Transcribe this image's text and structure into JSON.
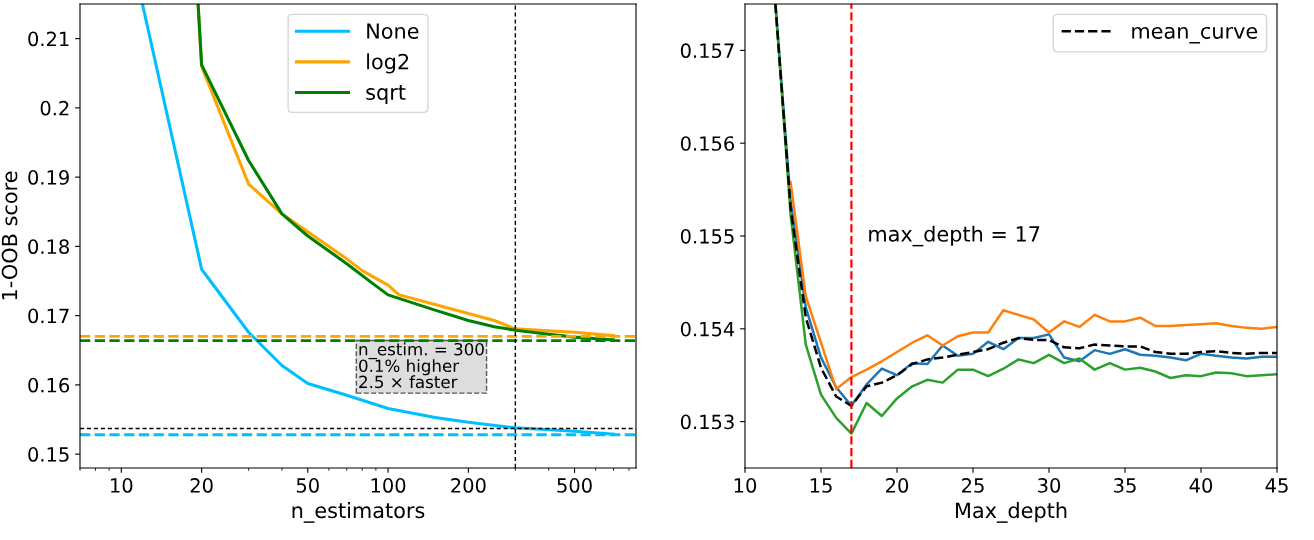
{
  "chart_data": [
    {
      "type": "line",
      "xlabel": "n_estimators",
      "ylabel": "1-OOB score",
      "log": "x",
      "xlim": [
        7,
        850
      ],
      "xticks": [
        10,
        20,
        50,
        100,
        200,
        500
      ],
      "ylim": [
        0.148,
        0.215
      ],
      "yticks": [
        0.15,
        0.16,
        0.17,
        0.18,
        0.19,
        0.2,
        0.21
      ],
      "grid": false,
      "legend": "top center",
      "marker": "none",
      "series": [
        {
          "name": "None",
          "color": "#00bfff",
          "x": [
            12,
            20,
            30,
            40,
            50,
            70,
            100,
            150,
            200,
            300,
            500,
            700
          ],
          "values": [
            0.215,
            0.1767,
            0.1676,
            0.1628,
            0.1602,
            0.1585,
            0.1566,
            0.1553,
            0.1546,
            0.1538,
            0.1533,
            0.1529
          ]
        },
        {
          "name": "log2",
          "color": "#ffa500",
          "x": [
            19.4,
            20,
            30,
            40,
            50,
            70,
            80,
            100,
            110,
            150,
            200,
            250,
            300,
            400,
            500,
            700
          ],
          "values": [
            0.215,
            0.206,
            0.189,
            0.1847,
            0.1821,
            0.1782,
            0.1765,
            0.1744,
            0.173,
            0.1716,
            0.1703,
            0.1693,
            0.1681,
            0.1678,
            0.1676,
            0.1671
          ]
        },
        {
          "name": "sqrt",
          "color": "#008000",
          "x": [
            19.4,
            20,
            30,
            40,
            50,
            70,
            90,
            100,
            150,
            200,
            250,
            300,
            400,
            500,
            700
          ],
          "values": [
            0.215,
            0.2062,
            0.1924,
            0.1847,
            0.1815,
            0.1775,
            0.1743,
            0.173,
            0.1708,
            0.1693,
            0.1684,
            0.1679,
            0.1673,
            0.1669,
            0.1665
          ]
        }
      ],
      "ref_lines": [
        {
          "axis": "y",
          "value": 0.167,
          "color": "#ffa500",
          "line_style": "dashed"
        },
        {
          "axis": "y",
          "value": 0.1664,
          "color": "#008000",
          "line_style": "dashed"
        },
        {
          "axis": "y",
          "value": 0.1528,
          "color": "#00bfff",
          "line_style": "dashed"
        },
        {
          "axis": "y",
          "value": 0.1537,
          "color": "#000000",
          "line_style": "dotted"
        },
        {
          "axis": "x",
          "value": 300,
          "color": "#000000",
          "line_style": "dotted"
        }
      ],
      "annotations": [
        "n_estim. = 300",
        "0.1% higher",
        "2.5 × faster"
      ]
    },
    {
      "type": "line",
      "xlabel": "Max_depth",
      "xlim": [
        10,
        45
      ],
      "xticks": [
        10,
        15,
        20,
        25,
        30,
        35,
        40,
        45
      ],
      "ylim": [
        0.1525,
        0.1575
      ],
      "yticks": [
        0.153,
        0.154,
        0.155,
        0.156,
        0.157
      ],
      "grid": false,
      "legend": "top right",
      "marker": "none",
      "x": [
        12,
        13,
        14,
        15,
        16,
        17,
        18,
        19,
        20,
        21,
        22,
        23,
        24,
        25,
        26,
        27,
        28,
        29,
        30,
        31,
        32,
        33,
        34,
        35,
        36,
        37,
        38,
        39,
        40,
        41,
        42,
        43,
        44,
        45
      ],
      "series": [
        {
          "color": "#1f77b4",
          "line_style": "solid",
          "values": [
            0.1575,
            0.15538,
            0.15423,
            0.15369,
            0.15337,
            0.15317,
            0.1534,
            0.15357,
            0.1535,
            0.15363,
            0.15362,
            0.15382,
            0.15371,
            0.15373,
            0.15386,
            0.15378,
            0.1539,
            0.1539,
            0.15394,
            0.15369,
            0.15365,
            0.15377,
            0.15373,
            0.15378,
            0.15372,
            0.15371,
            0.15369,
            0.15366,
            0.15373,
            0.15371,
            0.15369,
            0.15368,
            0.1537,
            0.1537
          ]
        },
        {
          "color": "#ff7f0e",
          "line_style": "solid",
          "values": [
            null,
            0.15558,
            0.15435,
            0.15385,
            0.15335,
            0.15348,
            0.15356,
            0.15365,
            0.15375,
            0.15385,
            0.15393,
            0.15382,
            0.15392,
            0.15396,
            0.15396,
            0.1542,
            0.15415,
            0.1541,
            0.15396,
            0.15408,
            0.15402,
            0.15415,
            0.15408,
            0.15408,
            0.15412,
            0.15403,
            0.15403,
            0.15404,
            0.15405,
            0.15406,
            0.15403,
            0.15401,
            0.154,
            0.15402
          ]
        },
        {
          "color": "#2ca02c",
          "line_style": "solid",
          "values": [
            0.1575,
            0.15523,
            0.15383,
            0.15329,
            0.15304,
            0.15287,
            0.1532,
            0.15306,
            0.15325,
            0.15338,
            0.15345,
            0.15342,
            0.15356,
            0.15356,
            0.15349,
            0.15357,
            0.15367,
            0.15363,
            0.15372,
            0.15363,
            0.15368,
            0.15356,
            0.15363,
            0.15356,
            0.15358,
            0.15354,
            0.15347,
            0.1535,
            0.15349,
            0.15353,
            0.15352,
            0.15349,
            0.1535,
            0.15351
          ]
        },
        {
          "name": "mean_curve",
          "color": "#000000",
          "line_style": "dashed",
          "values": [
            0.1575,
            0.1553,
            0.15412,
            0.15358,
            0.15327,
            0.15317,
            0.15338,
            0.15342,
            0.1535,
            0.15362,
            0.15367,
            0.15369,
            0.15372,
            0.15375,
            0.15378,
            0.15385,
            0.1539,
            0.15388,
            0.15388,
            0.1538,
            0.15379,
            0.15383,
            0.15382,
            0.15381,
            0.15381,
            0.15375,
            0.15373,
            0.15373,
            0.15375,
            0.15376,
            0.15374,
            0.15373,
            0.15374,
            0.15374
          ]
        }
      ],
      "ref_lines": [
        {
          "axis": "x",
          "value": 17,
          "color": "#ff0000",
          "line_style": "dashed",
          "label": "max_depth = 17"
        }
      ]
    }
  ]
}
